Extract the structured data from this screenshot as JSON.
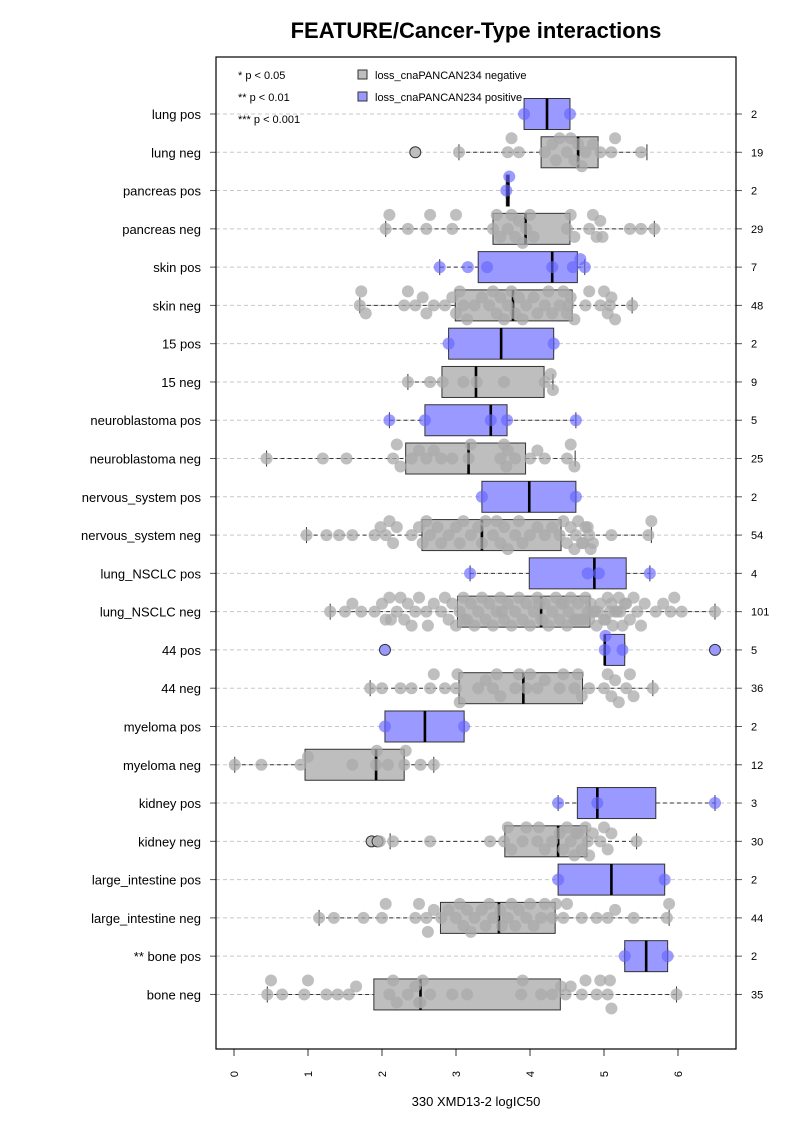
{
  "chart_data": {
    "type": "boxplot",
    "orientation": "horizontal",
    "title": "FEATURE/Cancer-Type interactions",
    "xlabel": "330 XMD13-2 logIC50",
    "ylabel": "",
    "xlim": [
      -0.25,
      6.8
    ],
    "x_ticks": [
      "0",
      "1",
      "2",
      "3",
      "4",
      "5",
      "6"
    ],
    "grid": "horizontal dashed",
    "legend_position": "top-left",
    "significance_legend": [
      "* p < 0.05",
      "** p < 0.01",
      "*** p < 0.001"
    ],
    "legend": [
      {
        "label": "loss_cnaPANCAN234 negative",
        "color": "#bebebe"
      },
      {
        "label": "loss_cnaPANCAN234 positive",
        "color": "#9999ff"
      }
    ],
    "colors": {
      "negative_fill": "#bebebe",
      "positive_fill": "#9999ff",
      "negative_point": "#a9a9a9",
      "positive_point": "#6666ff",
      "frame": "#000000",
      "grid": "#c8c8c8"
    },
    "groups": [
      {
        "label": "lung pos",
        "type": "pos",
        "n": "2",
        "whisker_low": 3.92,
        "q1": 3.92,
        "median": 4.23,
        "q3": 4.54,
        "whisker_high": 4.54,
        "outliers": [],
        "points": [
          3.92,
          4.54
        ]
      },
      {
        "label": "lung neg",
        "type": "neg",
        "n": "19",
        "whisker_low": 3.04,
        "q1": 4.15,
        "median": 4.65,
        "q3": 4.92,
        "whisker_high": 5.58,
        "outliers": [
          2.45
        ],
        "points": [
          3.04,
          3.7,
          3.75,
          3.85,
          4.2,
          4.3,
          4.35,
          4.4,
          4.5,
          4.55,
          4.6,
          4.65,
          4.7,
          4.75,
          4.85,
          4.95,
          5.1,
          5.15,
          5.5
        ]
      },
      {
        "label": "pancreas pos",
        "type": "pos",
        "n": "2",
        "whisker_low": 3.68,
        "q1": 3.68,
        "median": 3.7,
        "q3": 3.72,
        "whisker_high": 3.72,
        "outliers": [],
        "points": [
          3.68,
          3.72
        ]
      },
      {
        "label": "pancreas neg",
        "type": "neg",
        "n": "29",
        "whisker_low": 2.05,
        "q1": 3.5,
        "median": 3.94,
        "q3": 4.54,
        "whisker_high": 5.68,
        "outliers": [],
        "points": [
          2.05,
          2.1,
          2.35,
          2.6,
          2.65,
          2.95,
          3.0,
          3.5,
          3.55,
          3.6,
          3.7,
          3.75,
          3.8,
          3.85,
          3.9,
          3.95,
          4.0,
          4.05,
          4.5,
          4.55,
          4.6,
          4.8,
          4.85,
          4.9,
          4.95,
          4.98,
          5.35,
          5.5,
          5.68
        ]
      },
      {
        "label": "skin pos",
        "type": "pos",
        "n": "7",
        "whisker_low": 2.78,
        "q1": 3.3,
        "median": 4.3,
        "q3": 4.64,
        "whisker_high": 4.74,
        "outliers": [],
        "points": [
          2.78,
          3.16,
          3.42,
          4.3,
          4.58,
          4.68,
          4.74
        ]
      },
      {
        "label": "skin neg",
        "type": "neg",
        "n": "48",
        "whisker_low": 1.7,
        "q1": 2.99,
        "median": 3.77,
        "q3": 4.57,
        "whisker_high": 5.38,
        "outliers": [],
        "points": [
          1.7,
          1.72,
          1.78,
          2.3,
          2.35,
          2.45,
          2.55,
          2.6,
          2.7,
          2.85,
          2.95,
          3.0,
          3.05,
          3.1,
          3.15,
          3.25,
          3.35,
          3.45,
          3.5,
          3.55,
          3.6,
          3.65,
          3.7,
          3.75,
          3.8,
          3.85,
          3.9,
          3.95,
          4.05,
          4.1,
          4.2,
          4.25,
          4.3,
          4.4,
          4.45,
          4.5,
          4.52,
          4.55,
          4.6,
          4.75,
          4.8,
          4.95,
          5.0,
          5.05,
          5.08,
          5.1,
          5.15,
          5.38
        ]
      },
      {
        "label": "15 pos",
        "type": "pos",
        "n": "2",
        "whisker_low": 2.9,
        "q1": 2.9,
        "median": 3.61,
        "q3": 4.32,
        "whisker_high": 4.32,
        "outliers": [],
        "points": [
          2.9,
          4.32
        ]
      },
      {
        "label": "15 neg",
        "type": "neg",
        "n": "9",
        "whisker_low": 2.35,
        "q1": 2.81,
        "median": 3.27,
        "q3": 4.19,
        "whisker_high": 4.31,
        "outliers": [],
        "points": [
          2.35,
          2.65,
          2.82,
          3.1,
          3.28,
          3.65,
          4.2,
          4.28,
          4.31
        ]
      },
      {
        "label": "neuroblastoma pos",
        "type": "pos",
        "n": "5",
        "whisker_low": 2.1,
        "q1": 2.58,
        "median": 3.47,
        "q3": 3.69,
        "whisker_high": 4.62,
        "outliers": [],
        "points": [
          2.1,
          2.58,
          3.47,
          3.69,
          4.62
        ]
      },
      {
        "label": "neuroblastoma neg",
        "type": "neg",
        "n": "25",
        "whisker_low": 0.44,
        "q1": 2.32,
        "median": 3.17,
        "q3": 3.94,
        "whisker_high": 4.61,
        "outliers": [],
        "points": [
          0.44,
          1.2,
          1.52,
          2.15,
          2.2,
          2.25,
          2.4,
          2.5,
          2.6,
          2.7,
          2.8,
          2.95,
          3.17,
          3.2,
          3.6,
          3.65,
          3.68,
          3.7,
          3.8,
          4.0,
          4.1,
          4.2,
          4.5,
          4.55,
          4.6
        ]
      },
      {
        "label": "nervous_system pos",
        "type": "pos",
        "n": "2",
        "whisker_low": 3.35,
        "q1": 3.35,
        "median": 3.99,
        "q3": 4.62,
        "whisker_high": 4.62,
        "outliers": [],
        "points": [
          3.35,
          4.62
        ]
      },
      {
        "label": "nervous_system neg",
        "type": "neg",
        "n": "54",
        "whisker_low": 0.98,
        "q1": 2.54,
        "median": 3.35,
        "q3": 4.42,
        "whisker_high": 5.64,
        "outliers": [],
        "points": [
          0.98,
          1.25,
          1.42,
          1.6,
          1.9,
          1.98,
          2.05,
          2.1,
          2.15,
          2.2,
          2.4,
          2.5,
          2.55,
          2.6,
          2.65,
          2.75,
          2.8,
          2.9,
          3.0,
          3.05,
          3.1,
          3.2,
          3.3,
          3.35,
          3.4,
          3.5,
          3.55,
          3.6,
          3.65,
          3.7,
          3.8,
          3.85,
          3.9,
          4.0,
          4.1,
          4.2,
          4.3,
          4.4,
          4.45,
          4.5,
          4.55,
          4.6,
          4.62,
          4.65,
          4.7,
          4.72,
          4.75,
          4.78,
          4.8,
          4.82,
          4.85,
          5.1,
          5.6,
          5.64
        ]
      },
      {
        "label": "lung_NSCLC pos",
        "type": "pos",
        "n": "4",
        "whisker_low": 3.19,
        "q1": 3.99,
        "median": 4.87,
        "q3": 5.3,
        "whisker_high": 5.62,
        "outliers": [],
        "points": [
          3.19,
          4.78,
          4.93,
          5.62
        ]
      },
      {
        "label": "lung_NSCLC neg",
        "type": "neg",
        "n": "101",
        "whisker_low": 1.3,
        "q1": 3.02,
        "median": 4.15,
        "q3": 4.81,
        "whisker_high": 6.5,
        "outliers": [],
        "points": [
          1.3,
          1.5,
          1.6,
          1.72,
          1.9,
          2.0,
          2.05,
          2.1,
          2.2,
          2.25,
          2.3,
          2.35,
          2.4,
          2.45,
          2.5,
          2.6,
          2.7,
          2.8,
          2.85,
          2.9,
          2.95,
          3.0,
          3.05,
          3.1,
          3.15,
          3.2,
          3.25,
          3.3,
          3.35,
          3.4,
          3.45,
          3.5,
          3.55,
          3.6,
          3.65,
          3.7,
          3.75,
          3.8,
          3.85,
          3.9,
          3.95,
          4.0,
          4.05,
          4.1,
          4.15,
          4.2,
          4.25,
          4.3,
          4.35,
          4.4,
          4.45,
          4.5,
          4.52,
          4.55,
          4.6,
          4.62,
          4.65,
          4.7,
          4.72,
          4.75,
          4.78,
          4.8,
          4.82,
          4.85,
          4.88,
          4.9,
          4.95,
          5.0,
          5.02,
          5.05,
          5.08,
          5.1,
          5.12,
          5.15,
          5.18,
          5.2,
          5.22,
          5.25,
          5.3,
          5.35,
          5.4,
          5.45,
          5.5,
          5.55,
          5.7,
          5.8,
          5.9,
          5.95,
          6.05,
          6.5,
          2.12,
          2.62,
          3.12,
          3.62,
          4.12,
          4.62,
          4.18,
          4.42,
          4.68,
          4.92,
          5.28
        ]
      },
      {
        "label": "44 pos",
        "type": "pos",
        "n": "5",
        "whisker_low": 5.01,
        "q1": 5.01,
        "median": 5.01,
        "q3": 5.28,
        "whisker_high": 5.28,
        "outliers": [
          2.04,
          6.5
        ],
        "points": [
          5.01,
          5.02,
          5.25
        ]
      },
      {
        "label": "44 neg",
        "type": "neg",
        "n": "36",
        "whisker_low": 1.84,
        "q1": 3.04,
        "median": 3.91,
        "q3": 4.71,
        "whisker_high": 5.66,
        "outliers": [],
        "points": [
          1.84,
          2.0,
          2.25,
          2.4,
          2.65,
          2.7,
          2.85,
          3.0,
          3.02,
          3.05,
          3.3,
          3.4,
          3.5,
          3.55,
          3.6,
          3.8,
          3.85,
          3.95,
          4.0,
          4.1,
          4.2,
          4.4,
          4.45,
          4.6,
          4.65,
          4.7,
          4.8,
          5.0,
          5.05,
          5.1,
          5.15,
          5.2,
          5.3,
          5.35,
          5.4,
          5.66
        ]
      },
      {
        "label": "myeloma pos",
        "type": "pos",
        "n": "2",
        "whisker_low": 2.04,
        "q1": 2.04,
        "median": 2.58,
        "q3": 3.11,
        "whisker_high": 3.11,
        "outliers": [],
        "points": [
          2.04,
          3.11
        ]
      },
      {
        "label": "myeloma neg",
        "type": "neg",
        "n": "12",
        "whisker_low": 0.01,
        "q1": 0.96,
        "median": 1.92,
        "q3": 2.3,
        "whisker_high": 2.7,
        "outliers": [],
        "points": [
          0.01,
          0.37,
          0.9,
          1.0,
          1.6,
          1.92,
          1.93,
          2.08,
          2.3,
          2.32,
          2.52,
          2.7
        ]
      },
      {
        "label": "kidney pos",
        "type": "pos",
        "n": "3",
        "whisker_low": 4.38,
        "q1": 4.64,
        "median": 4.91,
        "q3": 5.7,
        "whisker_high": 6.5,
        "outliers": [],
        "points": [
          4.38,
          4.91,
          6.5
        ]
      },
      {
        "label": "kidney neg",
        "type": "neg",
        "n": "30",
        "whisker_low": 2.11,
        "q1": 3.66,
        "median": 4.38,
        "q3": 4.77,
        "whisker_high": 5.44,
        "outliers": [
          1.86,
          1.94
        ],
        "points": [
          1.97,
          2.15,
          2.65,
          3.46,
          3.65,
          3.7,
          3.75,
          3.9,
          3.95,
          4.1,
          4.12,
          4.2,
          4.3,
          4.4,
          4.45,
          4.5,
          4.55,
          4.6,
          4.62,
          4.65,
          4.7,
          4.75,
          4.78,
          4.8,
          4.85,
          4.95,
          5.0,
          5.05,
          5.1,
          5.44
        ]
      },
      {
        "label": "large_intestine pos",
        "type": "pos",
        "n": "2",
        "whisker_low": 4.38,
        "q1": 4.38,
        "median": 5.1,
        "q3": 5.82,
        "whisker_high": 5.82,
        "outliers": [],
        "points": [
          4.38,
          5.82
        ]
      },
      {
        "label": "large_intestine neg",
        "type": "neg",
        "n": "44",
        "whisker_low": 1.15,
        "q1": 2.79,
        "median": 3.58,
        "q3": 4.34,
        "whisker_high": 5.88,
        "outliers": [],
        "points": [
          1.15,
          1.35,
          1.75,
          2.0,
          2.05,
          2.45,
          2.5,
          2.6,
          2.62,
          2.7,
          2.8,
          2.9,
          3.0,
          3.05,
          3.1,
          3.15,
          3.2,
          3.25,
          3.35,
          3.4,
          3.45,
          3.5,
          3.6,
          3.62,
          3.7,
          3.75,
          3.8,
          3.85,
          3.95,
          4.0,
          4.05,
          4.15,
          4.2,
          4.3,
          4.35,
          4.45,
          4.5,
          4.7,
          4.9,
          5.05,
          5.15,
          5.4,
          5.85,
          5.88
        ]
      },
      {
        "label": "** bone pos",
        "type": "pos",
        "n": "2",
        "whisker_low": 5.28,
        "q1": 5.28,
        "median": 5.57,
        "q3": 5.86,
        "whisker_high": 5.86,
        "outliers": [],
        "points": [
          5.28,
          5.86
        ]
      },
      {
        "label": "bone neg",
        "type": "neg",
        "n": "35",
        "whisker_low": 0.45,
        "q1": 1.89,
        "median": 2.52,
        "q3": 4.41,
        "whisker_high": 5.98,
        "outliers": [],
        "points": [
          0.45,
          0.5,
          0.65,
          0.95,
          1.0,
          1.25,
          1.4,
          1.55,
          1.65,
          2.1,
          2.15,
          2.2,
          2.35,
          2.45,
          2.5,
          2.52,
          2.55,
          2.65,
          2.95,
          3.15,
          3.88,
          3.9,
          4.15,
          4.3,
          4.42,
          4.48,
          4.55,
          4.7,
          4.75,
          4.9,
          4.95,
          5.05,
          5.08,
          5.1,
          5.98
        ]
      }
    ]
  }
}
